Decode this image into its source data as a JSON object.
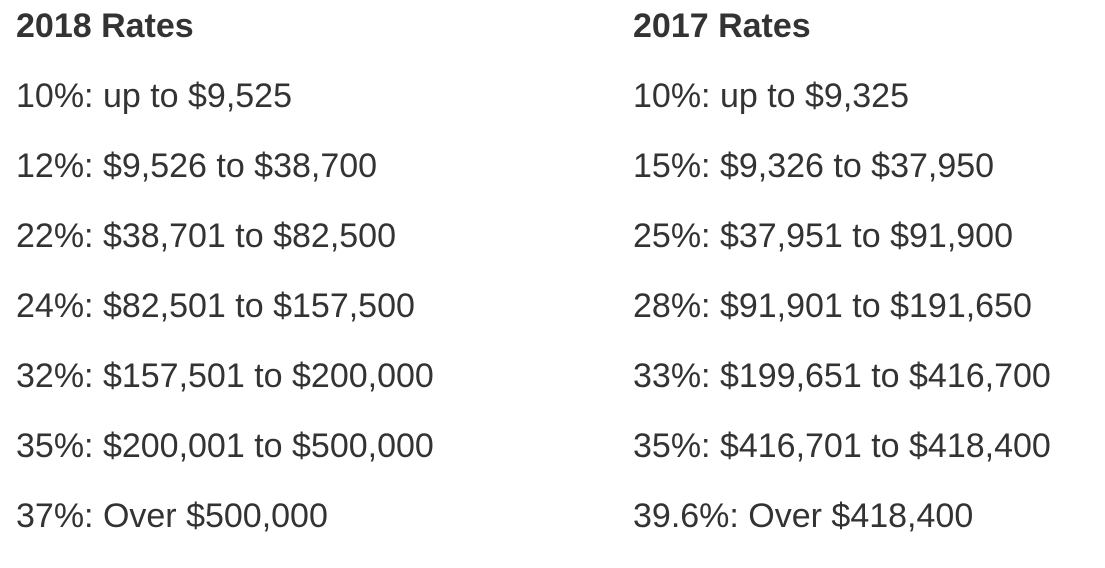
{
  "left_column": {
    "heading": "2018 Rates",
    "rates": [
      "10%: up to $9,525",
      "12%: $9,526 to $38,700",
      "22%: $38,701 to $82,500",
      "24%: $82,501 to $157,500",
      "32%: $157,501 to $200,000",
      "35%: $200,001 to $500,000",
      "37%: Over $500,000"
    ]
  },
  "right_column": {
    "heading": "2017 Rates",
    "rates": [
      "10%: up to $9,325",
      "15%: $9,326 to $37,950",
      "25%: $37,951 to $91,900",
      "28%: $91,901 to $191,650",
      "33%: $199,651 to $416,700",
      "35%: $416,701 to $418,400",
      "39.6%: Over $418,400"
    ]
  },
  "colors": {
    "text": "#333333",
    "background": "#ffffff"
  }
}
